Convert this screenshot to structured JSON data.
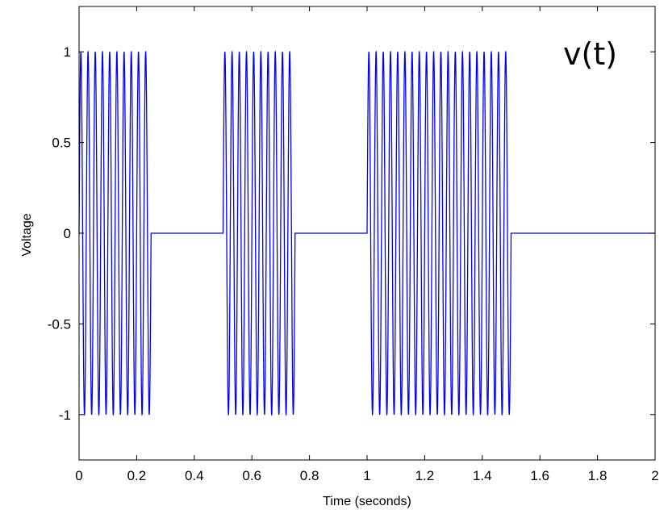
{
  "chart_data": {
    "type": "line",
    "title": "",
    "xlabel": "Time (seconds)",
    "ylabel": "Voltage",
    "xlim": [
      0,
      2
    ],
    "ylim": [
      -1.25,
      1.25
    ],
    "xticks": [
      0,
      0.2,
      0.4,
      0.6,
      0.8,
      1,
      1.2,
      1.4,
      1.6,
      1.8,
      2
    ],
    "xtick_labels": [
      "0",
      "0.2",
      "0.4",
      "0.6",
      "0.8",
      "1",
      "1.2",
      "1.4",
      "1.6",
      "1.8",
      "2"
    ],
    "yticks": [
      -1,
      -0.5,
      0,
      0.5,
      1
    ],
    "ytick_labels": [
      "-1",
      "-0.5",
      "0",
      "0.5",
      "1"
    ],
    "grid": false,
    "annotation": "v(t)",
    "line_color": "#0000ff",
    "series": [
      {
        "frequency_hz": 40,
        "amplitude": 1,
        "on_intervals": [
          [
            0,
            0.25
          ],
          [
            0.5,
            0.75
          ],
          [
            1.0,
            1.5
          ]
        ],
        "off_value": 0
      }
    ]
  }
}
